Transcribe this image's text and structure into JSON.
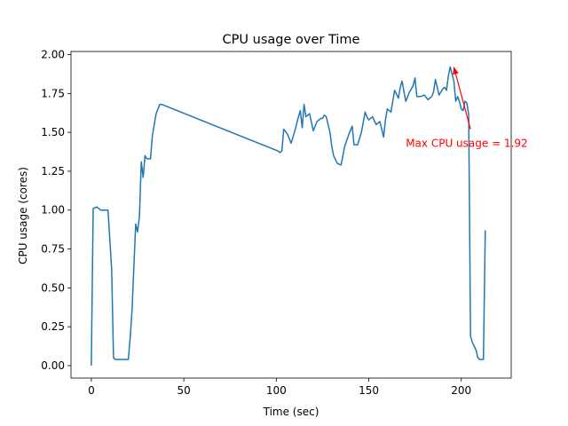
{
  "chart_data": {
    "type": "line",
    "title": "CPU usage over Time",
    "xlabel": "Time (sec)",
    "ylabel": "CPU usage (cores)",
    "xlim": [
      -11,
      227
    ],
    "ylim": [
      -0.08,
      2.02
    ],
    "xticks": [
      0,
      50,
      100,
      150,
      200
    ],
    "yticks": [
      0.0,
      0.25,
      0.5,
      0.75,
      1.0,
      1.25,
      1.5,
      1.75,
      2.0
    ],
    "ytick_labels": [
      "0.00",
      "0.25",
      "0.50",
      "0.75",
      "1.00",
      "1.25",
      "1.50",
      "1.75",
      "2.00"
    ],
    "grid": false,
    "line_color": "#1f77b4",
    "series": [
      {
        "x": [
          0,
          1,
          3,
          5,
          7,
          9,
          11,
          12,
          13,
          16,
          19,
          20,
          21,
          22,
          24,
          25,
          26,
          27,
          28,
          29,
          30,
          31,
          32,
          33,
          34,
          35,
          37,
          38,
          101,
          102,
          103,
          104,
          106,
          108,
          110,
          112,
          113,
          114,
          115,
          116,
          118,
          120,
          122,
          124,
          125,
          126,
          127,
          129,
          130,
          131,
          133,
          135,
          137,
          139,
          141,
          142,
          143,
          144,
          146,
          148,
          149,
          150,
          152,
          154,
          156,
          158,
          159,
          160,
          162,
          164,
          166,
          167,
          168,
          170,
          172,
          174,
          175,
          176,
          178,
          180,
          182,
          184,
          185,
          186,
          188,
          190,
          191,
          192,
          193,
          194,
          196,
          197,
          198,
          199,
          200,
          201,
          202,
          203,
          204,
          205,
          206,
          208,
          209,
          210,
          211,
          212,
          213
        ],
        "y": [
          0.0,
          1.01,
          1.02,
          1.0,
          1.0,
          1.0,
          0.62,
          0.05,
          0.04,
          0.04,
          0.04,
          0.04,
          0.18,
          0.36,
          0.91,
          0.86,
          0.96,
          1.31,
          1.21,
          1.35,
          1.33,
          1.33,
          1.33,
          1.48,
          1.55,
          1.62,
          1.68,
          1.68,
          1.38,
          1.37,
          1.38,
          1.52,
          1.49,
          1.43,
          1.51,
          1.6,
          1.64,
          1.53,
          1.68,
          1.6,
          1.62,
          1.51,
          1.57,
          1.59,
          1.59,
          1.61,
          1.6,
          1.5,
          1.41,
          1.35,
          1.3,
          1.29,
          1.41,
          1.48,
          1.54,
          1.42,
          1.42,
          1.42,
          1.5,
          1.63,
          1.6,
          1.58,
          1.6,
          1.55,
          1.57,
          1.47,
          1.58,
          1.65,
          1.63,
          1.77,
          1.72,
          1.79,
          1.83,
          1.7,
          1.76,
          1.8,
          1.85,
          1.73,
          1.73,
          1.74,
          1.71,
          1.73,
          1.76,
          1.84,
          1.74,
          1.78,
          1.79,
          1.77,
          1.86,
          1.92,
          1.83,
          1.7,
          1.73,
          1.7,
          1.65,
          1.64,
          1.7,
          1.69,
          1.61,
          0.19,
          0.15,
          0.1,
          0.05,
          0.04,
          0.04,
          0.04,
          0.87
        ]
      }
    ],
    "annotation": {
      "text": "Max CPU usage = 1.92",
      "color": "#ff0000",
      "text_x": 170,
      "text_y": 1.43,
      "arrow_from": [
        205,
        1.52
      ],
      "arrow_to": [
        196,
        1.92
      ]
    }
  }
}
